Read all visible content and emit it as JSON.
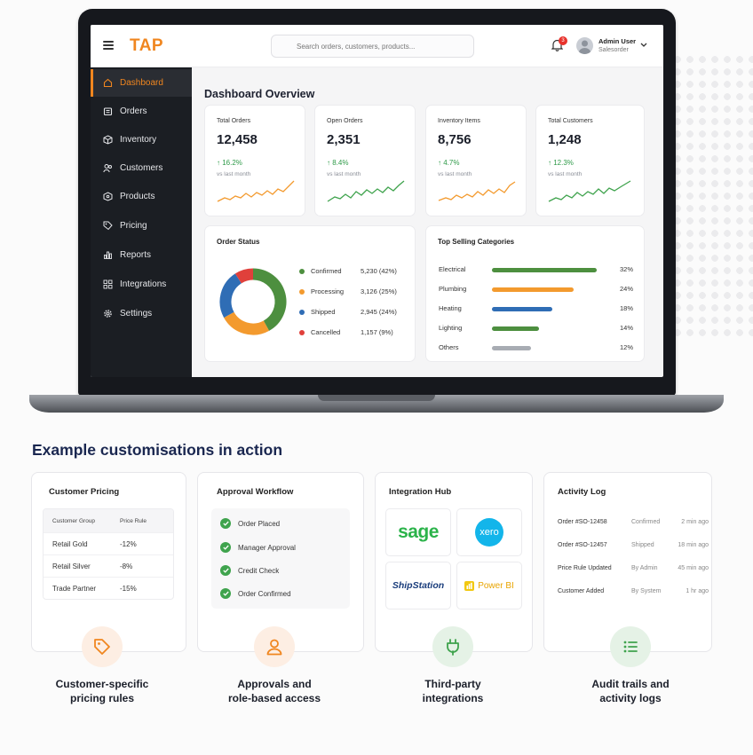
{
  "app": {
    "logo": "TAP",
    "search_placeholder": "Search orders, customers, products...",
    "notifications": "3",
    "user_name": "Admin User",
    "user_role": "Salesorder"
  },
  "sidebar": {
    "items": [
      {
        "label": "Dashboard",
        "icon": "home-icon"
      },
      {
        "label": "Orders",
        "icon": "orders-icon"
      },
      {
        "label": "Inventory",
        "icon": "box-icon"
      },
      {
        "label": "Customers",
        "icon": "users-icon"
      },
      {
        "label": "Products",
        "icon": "product-icon"
      },
      {
        "label": "Pricing",
        "icon": "tag-icon"
      },
      {
        "label": "Reports",
        "icon": "chart-icon"
      },
      {
        "label": "Integrations",
        "icon": "integrations-icon"
      },
      {
        "label": "Settings",
        "icon": "gear-icon"
      }
    ]
  },
  "dashboard": {
    "title": "Dashboard Overview",
    "stats": [
      {
        "label": "Total Orders",
        "value": "12,458",
        "change": "↑ 16.2%",
        "sub": "vs last month"
      },
      {
        "label": "Open Orders",
        "value": "2,351",
        "change": "↑ 8.4%",
        "sub": "vs last month"
      },
      {
        "label": "Inventory Items",
        "value": "8,756",
        "change": "↑ 4.7%",
        "sub": "vs last month"
      },
      {
        "label": "Total Customers",
        "value": "1,248",
        "change": "↑ 12.3%",
        "sub": "vs last month"
      }
    ],
    "order_status": {
      "title": "Order Status",
      "items": [
        {
          "label": "Confirmed",
          "value": "5,230 (42%)",
          "color": "#4d8f3f"
        },
        {
          "label": "Processing",
          "value": "3,126 (25%)",
          "color": "#f39a2e"
        },
        {
          "label": "Shipped",
          "value": "2,945 (24%)",
          "color": "#2f6db5"
        },
        {
          "label": "Cancelled",
          "value": "1,157 (9%)",
          "color": "#e0403b"
        }
      ]
    },
    "top_selling": {
      "title": "Top Selling Categories",
      "items": [
        {
          "label": "Electrical",
          "pct": "32%",
          "color": "#4d8f3f",
          "fraction": 1.0
        },
        {
          "label": "Plumbing",
          "pct": "24%",
          "color": "#f39a2e",
          "fraction": 0.78
        },
        {
          "label": "Heating",
          "pct": "18%",
          "color": "#2f6db5",
          "fraction": 0.58
        },
        {
          "label": "Lighting",
          "pct": "14%",
          "color": "#4d8f3f",
          "fraction": 0.45
        },
        {
          "label": "Others",
          "pct": "12%",
          "color": "#a8acb3",
          "fraction": 0.37
        }
      ]
    }
  },
  "section": {
    "heading": "Example customisations in action"
  },
  "pricing": {
    "title": "Customer Pricing",
    "col1": "Customer Group",
    "col2": "Price Rule",
    "rows": [
      {
        "group": "Retail Gold",
        "rule": "-12%"
      },
      {
        "group": "Retail Silver",
        "rule": "-8%"
      },
      {
        "group": "Trade Partner",
        "rule": "-15%"
      }
    ],
    "caption_line1": "Customer-specific",
    "caption_line2": "pricing rules"
  },
  "approval": {
    "title": "Approval Workflow",
    "steps": [
      "Order Placed",
      "Manager Approval",
      "Credit Check",
      "Order Confirmed"
    ],
    "caption_line1": "Approvals and",
    "caption_line2": "role-based access"
  },
  "integration": {
    "title": "Integration Hub",
    "tiles": [
      "sage",
      "xero",
      "ShipStation",
      "Power BI"
    ],
    "caption_line1": "Third-party",
    "caption_line2": "integrations"
  },
  "activity": {
    "title": "Activity Log",
    "rows": [
      {
        "event": "Order #SO-12458",
        "status": "Confirmed",
        "time": "2 min ago"
      },
      {
        "event": "Order #SO-12457",
        "status": "Shipped",
        "time": "18 min ago"
      },
      {
        "event": "Price Rule Updated",
        "status": "By Admin",
        "time": "45 min ago"
      },
      {
        "event": "Customer Added",
        "status": "By System",
        "time": "1 hr ago"
      }
    ],
    "caption_line1": "Audit trails and",
    "caption_line2": "activity logs"
  },
  "colors": {
    "accent": "#f0861f",
    "green": "#3fa34d",
    "navy": "#1a2750"
  }
}
